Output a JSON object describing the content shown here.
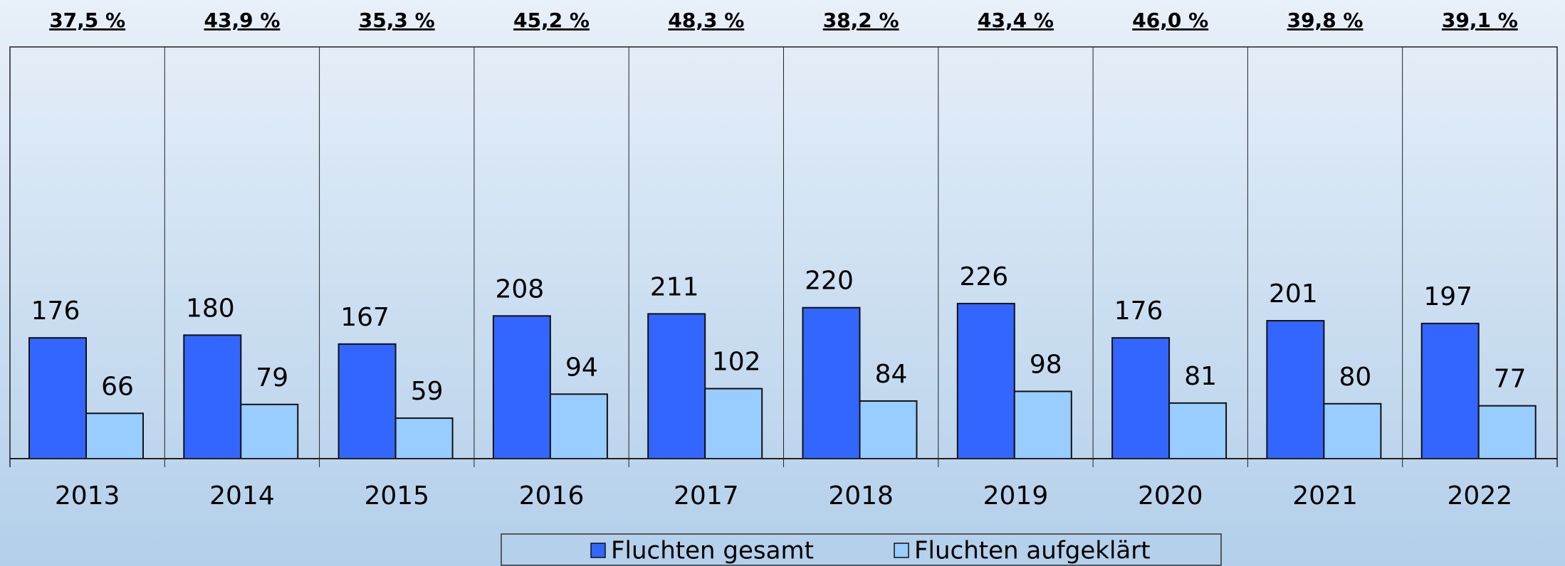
{
  "chart_data": {
    "type": "bar",
    "categories": [
      "2013",
      "2014",
      "2015",
      "2016",
      "2017",
      "2018",
      "2019",
      "2020",
      "2021",
      "2022"
    ],
    "series": [
      {
        "name": "Fluchten gesamt",
        "color": "#3366ff",
        "values": [
          176,
          180,
          167,
          208,
          211,
          220,
          226,
          176,
          201,
          197
        ]
      },
      {
        "name": "Fluchten aufgeklärt",
        "color": "#99ccff",
        "values": [
          66,
          79,
          59,
          94,
          102,
          84,
          98,
          81,
          80,
          77
        ]
      }
    ],
    "annotations": [
      "37,5 %",
      "43,9 %",
      "35,3 %",
      "45,2 %",
      "48,3 %",
      "38,2 %",
      "43,4 %",
      "46,0 %",
      "39,8 %",
      "39,1 %"
    ],
    "ylim": [
      0,
      600
    ]
  }
}
